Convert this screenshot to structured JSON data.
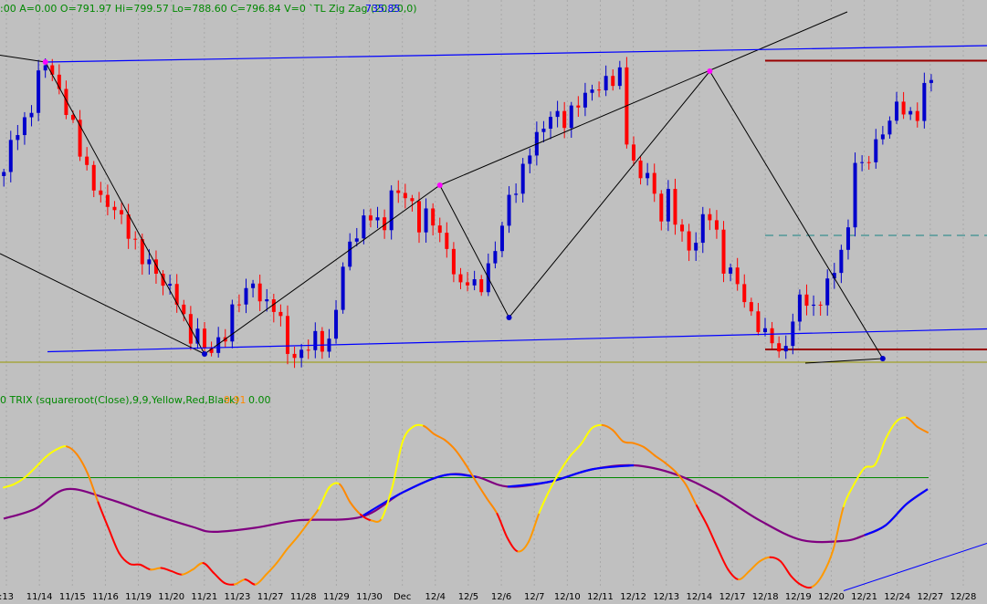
{
  "header": {
    "bar_info": ":00  A=0.00  O=791.97  Hi=799.57  Lo=788.60  C=796.84  V=0  `TL Zig Zag (20,20,0)",
    "zigzag_value": "735.85"
  },
  "indicator_header": {
    "label": "0  TRIX (squareroot(Close),9,9,Yellow,Red,Black)",
    "value1": "9.91",
    "value2": "0.00"
  },
  "colors": {
    "background": "#c0c0c0",
    "up_candle": "#0000cc",
    "down_candle": "#ff0000",
    "zigzag_line": "#000000",
    "trend_line": "#0000ff",
    "pivot_high": "#ff00ff",
    "pivot_low": "#0000cc",
    "support_level": "#990000",
    "mid_dashed": "#3a9090",
    "olive_level": "#999900",
    "trix_rising": "#ffff00",
    "trix_falling": "#ff0000",
    "signal_line": "#0000ff",
    "zero_line": "#008800"
  },
  "chart_data": [
    {
      "type": "candlestick",
      "x_axis_labels": [
        ":13",
        "11/14",
        "11/15",
        "11/16",
        "11/19",
        "11/20",
        "11/21",
        "11/23",
        "11/27",
        "11/28",
        "11/29",
        "11/30",
        "Dec",
        "12/4",
        "12/5",
        "12/6",
        "12/7",
        "12/10",
        "12/11",
        "12/12",
        "12/13",
        "12/14",
        "12/17",
        "12/18",
        "12/19",
        "12/20",
        "12/21",
        "12/24",
        "12/27",
        "12/28"
      ],
      "y_range": [
        728,
        810
      ],
      "price_path": [
        [
          0,
          775
        ],
        [
          1,
          782
        ],
        [
          2,
          786
        ],
        [
          3,
          787
        ],
        [
          4,
          790
        ],
        [
          5,
          796
        ],
        [
          6,
          800
        ],
        [
          7,
          798
        ],
        [
          8,
          794
        ],
        [
          9,
          789
        ],
        [
          10,
          785
        ],
        [
          11,
          781
        ],
        [
          12,
          777
        ],
        [
          13,
          773
        ],
        [
          14,
          770
        ],
        [
          15,
          767
        ],
        [
          16,
          769
        ],
        [
          17,
          766
        ],
        [
          18,
          763
        ],
        [
          19,
          759
        ],
        [
          20,
          756
        ],
        [
          21,
          757
        ],
        [
          22,
          754
        ],
        [
          23,
          752
        ],
        [
          24,
          749
        ],
        [
          25,
          748
        ],
        [
          26,
          744
        ],
        [
          27,
          740
        ],
        [
          28,
          741
        ],
        [
          29,
          736
        ],
        [
          30,
          737
        ],
        [
          31,
          739
        ],
        [
          32,
          741
        ],
        [
          33,
          745
        ],
        [
          34,
          747
        ],
        [
          35,
          750
        ],
        [
          36,
          752
        ],
        [
          37,
          749
        ],
        [
          38,
          746
        ],
        [
          39,
          746
        ],
        [
          40,
          743
        ],
        [
          41,
          738
        ],
        [
          42,
          735
        ],
        [
          43,
          736
        ],
        [
          44,
          737
        ],
        [
          45,
          740
        ],
        [
          46,
          739
        ],
        [
          47,
          738
        ],
        [
          48,
          746
        ],
        [
          49,
          754
        ],
        [
          50,
          761
        ],
        [
          51,
          763
        ],
        [
          52,
          765
        ],
        [
          53,
          766
        ],
        [
          54,
          764
        ],
        [
          55,
          765
        ],
        [
          56,
          772
        ],
        [
          57,
          771
        ],
        [
          58,
          770
        ],
        [
          59,
          768
        ],
        [
          60,
          765
        ],
        [
          61,
          767
        ],
        [
          62,
          765
        ],
        [
          63,
          761
        ],
        [
          64,
          759
        ],
        [
          65,
          755
        ],
        [
          66,
          751
        ],
        [
          67,
          752
        ],
        [
          68,
          750
        ],
        [
          69,
          751
        ],
        [
          70,
          756
        ],
        [
          71,
          759
        ],
        [
          72,
          764
        ],
        [
          73,
          769
        ],
        [
          74,
          773
        ],
        [
          75,
          777
        ],
        [
          76,
          781
        ],
        [
          77,
          783
        ],
        [
          78,
          785
        ],
        [
          79,
          789
        ],
        [
          80,
          789
        ],
        [
          81,
          787
        ],
        [
          82,
          788
        ],
        [
          83,
          791
        ],
        [
          84,
          793
        ],
        [
          85,
          795
        ],
        [
          86,
          794
        ],
        [
          87,
          795
        ],
        [
          88,
          796
        ],
        [
          89,
          798
        ],
        [
          90,
          784
        ],
        [
          91,
          777
        ],
        [
          92,
          774
        ],
        [
          93,
          776
        ],
        [
          94,
          771
        ],
        [
          95,
          767
        ],
        [
          96,
          770
        ],
        [
          97,
          765
        ],
        [
          98,
          762
        ],
        [
          99,
          760
        ],
        [
          100,
          761
        ],
        [
          101,
          765
        ],
        [
          102,
          766
        ],
        [
          103,
          762
        ],
        [
          104,
          756
        ],
        [
          105,
          754
        ],
        [
          106,
          751
        ],
        [
          107,
          747
        ],
        [
          108,
          745
        ],
        [
          109,
          743
        ],
        [
          110,
          740
        ],
        [
          111,
          739
        ],
        [
          112,
          735
        ],
        [
          113,
          739
        ],
        [
          114,
          744
        ],
        [
          115,
          748
        ],
        [
          116,
          747
        ],
        [
          117,
          745
        ],
        [
          118,
          749
        ],
        [
          119,
          752
        ],
        [
          120,
          754
        ],
        [
          121,
          758
        ],
        [
          122,
          763
        ],
        [
          123,
          780
        ],
        [
          124,
          777
        ],
        [
          125,
          779
        ],
        [
          126,
          781
        ],
        [
          127,
          785
        ],
        [
          128,
          788
        ],
        [
          129,
          791
        ],
        [
          130,
          789
        ],
        [
          131,
          787
        ],
        [
          132,
          789
        ],
        [
          133,
          795
        ],
        [
          134,
          797
        ]
      ],
      "zigzag_pivots": [
        [
          6,
          800
        ],
        [
          29,
          736
        ],
        [
          63,
          773
        ],
        [
          73,
          744
        ],
        [
          102,
          798
        ],
        [
          127,
          735
        ]
      ],
      "resistance_line": [
        793.5,
        804
      ],
      "support_level": 737,
      "mid_level": 762
    },
    {
      "type": "line",
      "name": "TRIX",
      "y_range": [
        -1.35,
        0.85
      ],
      "zero": 0,
      "trix": [
        [
          0,
          -0.12
        ],
        [
          1,
          -0.08
        ],
        [
          2,
          0.0
        ],
        [
          3,
          0.12
        ],
        [
          4,
          0.25
        ],
        [
          5,
          0.34
        ],
        [
          6,
          0.38
        ],
        [
          7,
          0.28
        ],
        [
          8,
          0.05
        ],
        [
          9,
          -0.3
        ],
        [
          10,
          -0.62
        ],
        [
          11,
          -0.92
        ],
        [
          12,
          -1.05
        ],
        [
          13,
          -1.06
        ],
        [
          14,
          -1.12
        ],
        [
          15,
          -1.1
        ],
        [
          16,
          -1.14
        ],
        [
          17,
          -1.18
        ],
        [
          18,
          -1.12
        ],
        [
          19,
          -1.04
        ],
        [
          20,
          -1.16
        ],
        [
          21,
          -1.28
        ],
        [
          22,
          -1.3
        ],
        [
          23,
          -1.24
        ],
        [
          24,
          -1.3
        ],
        [
          25,
          -1.18
        ],
        [
          26,
          -1.04
        ],
        [
          27,
          -0.87
        ],
        [
          28,
          -0.72
        ],
        [
          29,
          -0.55
        ],
        [
          30,
          -0.38
        ],
        [
          31,
          -0.12
        ],
        [
          32,
          -0.08
        ],
        [
          33,
          -0.3
        ],
        [
          34,
          -0.45
        ],
        [
          35,
          -0.52
        ],
        [
          36,
          -0.5
        ],
        [
          37,
          -0.12
        ],
        [
          38,
          0.44
        ],
        [
          39,
          0.62
        ],
        [
          40,
          0.63
        ],
        [
          41,
          0.53
        ],
        [
          42,
          0.46
        ],
        [
          43,
          0.34
        ],
        [
          44,
          0.16
        ],
        [
          45,
          -0.05
        ],
        [
          46,
          -0.25
        ],
        [
          47,
          -0.44
        ],
        [
          48,
          -0.74
        ],
        [
          49,
          -0.9
        ],
        [
          50,
          -0.78
        ],
        [
          51,
          -0.43
        ],
        [
          52,
          -0.15
        ],
        [
          53,
          0.08
        ],
        [
          54,
          0.27
        ],
        [
          55,
          0.41
        ],
        [
          56,
          0.6
        ],
        [
          57,
          0.64
        ],
        [
          58,
          0.58
        ],
        [
          59,
          0.44
        ],
        [
          60,
          0.42
        ],
        [
          61,
          0.37
        ],
        [
          62,
          0.27
        ],
        [
          63,
          0.18
        ],
        [
          64,
          0.07
        ],
        [
          65,
          -0.09
        ],
        [
          66,
          -0.34
        ],
        [
          67,
          -0.58
        ],
        [
          68,
          -0.86
        ],
        [
          69,
          -1.12
        ],
        [
          70,
          -1.24
        ],
        [
          71,
          -1.14
        ],
        [
          72,
          -1.02
        ],
        [
          73,
          -0.97
        ],
        [
          74,
          -1.02
        ],
        [
          75,
          -1.2
        ],
        [
          76,
          -1.31
        ],
        [
          77,
          -1.33
        ],
        [
          78,
          -1.18
        ],
        [
          79,
          -0.88
        ],
        [
          80,
          -0.35
        ],
        [
          81,
          -0.08
        ],
        [
          82,
          0.12
        ],
        [
          83,
          0.16
        ],
        [
          84,
          0.47
        ],
        [
          85,
          0.68
        ],
        [
          86,
          0.73
        ],
        [
          87,
          0.62
        ],
        [
          88,
          0.55
        ]
      ],
      "signal": [
        [
          0,
          -0.5
        ],
        [
          3,
          -0.38
        ],
        [
          6,
          -0.14
        ],
        [
          10,
          -0.26
        ],
        [
          14,
          -0.44
        ],
        [
          18,
          -0.6
        ],
        [
          20,
          -0.66
        ],
        [
          24,
          -0.61
        ],
        [
          28,
          -0.52
        ],
        [
          34,
          -0.48
        ],
        [
          38,
          -0.18
        ],
        [
          42,
          0.03
        ],
        [
          45,
          0.01
        ],
        [
          48,
          -0.11
        ],
        [
          52,
          -0.05
        ],
        [
          56,
          0.1
        ],
        [
          60,
          0.15
        ],
        [
          64,
          0.04
        ],
        [
          68,
          -0.2
        ],
        [
          72,
          -0.52
        ],
        [
          76,
          -0.76
        ],
        [
          80,
          -0.77
        ],
        [
          82,
          -0.7
        ],
        [
          84,
          -0.58
        ],
        [
          86,
          -0.32
        ],
        [
          88,
          -0.14
        ]
      ],
      "trend_segment": [
        [
          80,
          -1.2
        ],
        [
          90,
          -0.8
        ]
      ]
    }
  ]
}
